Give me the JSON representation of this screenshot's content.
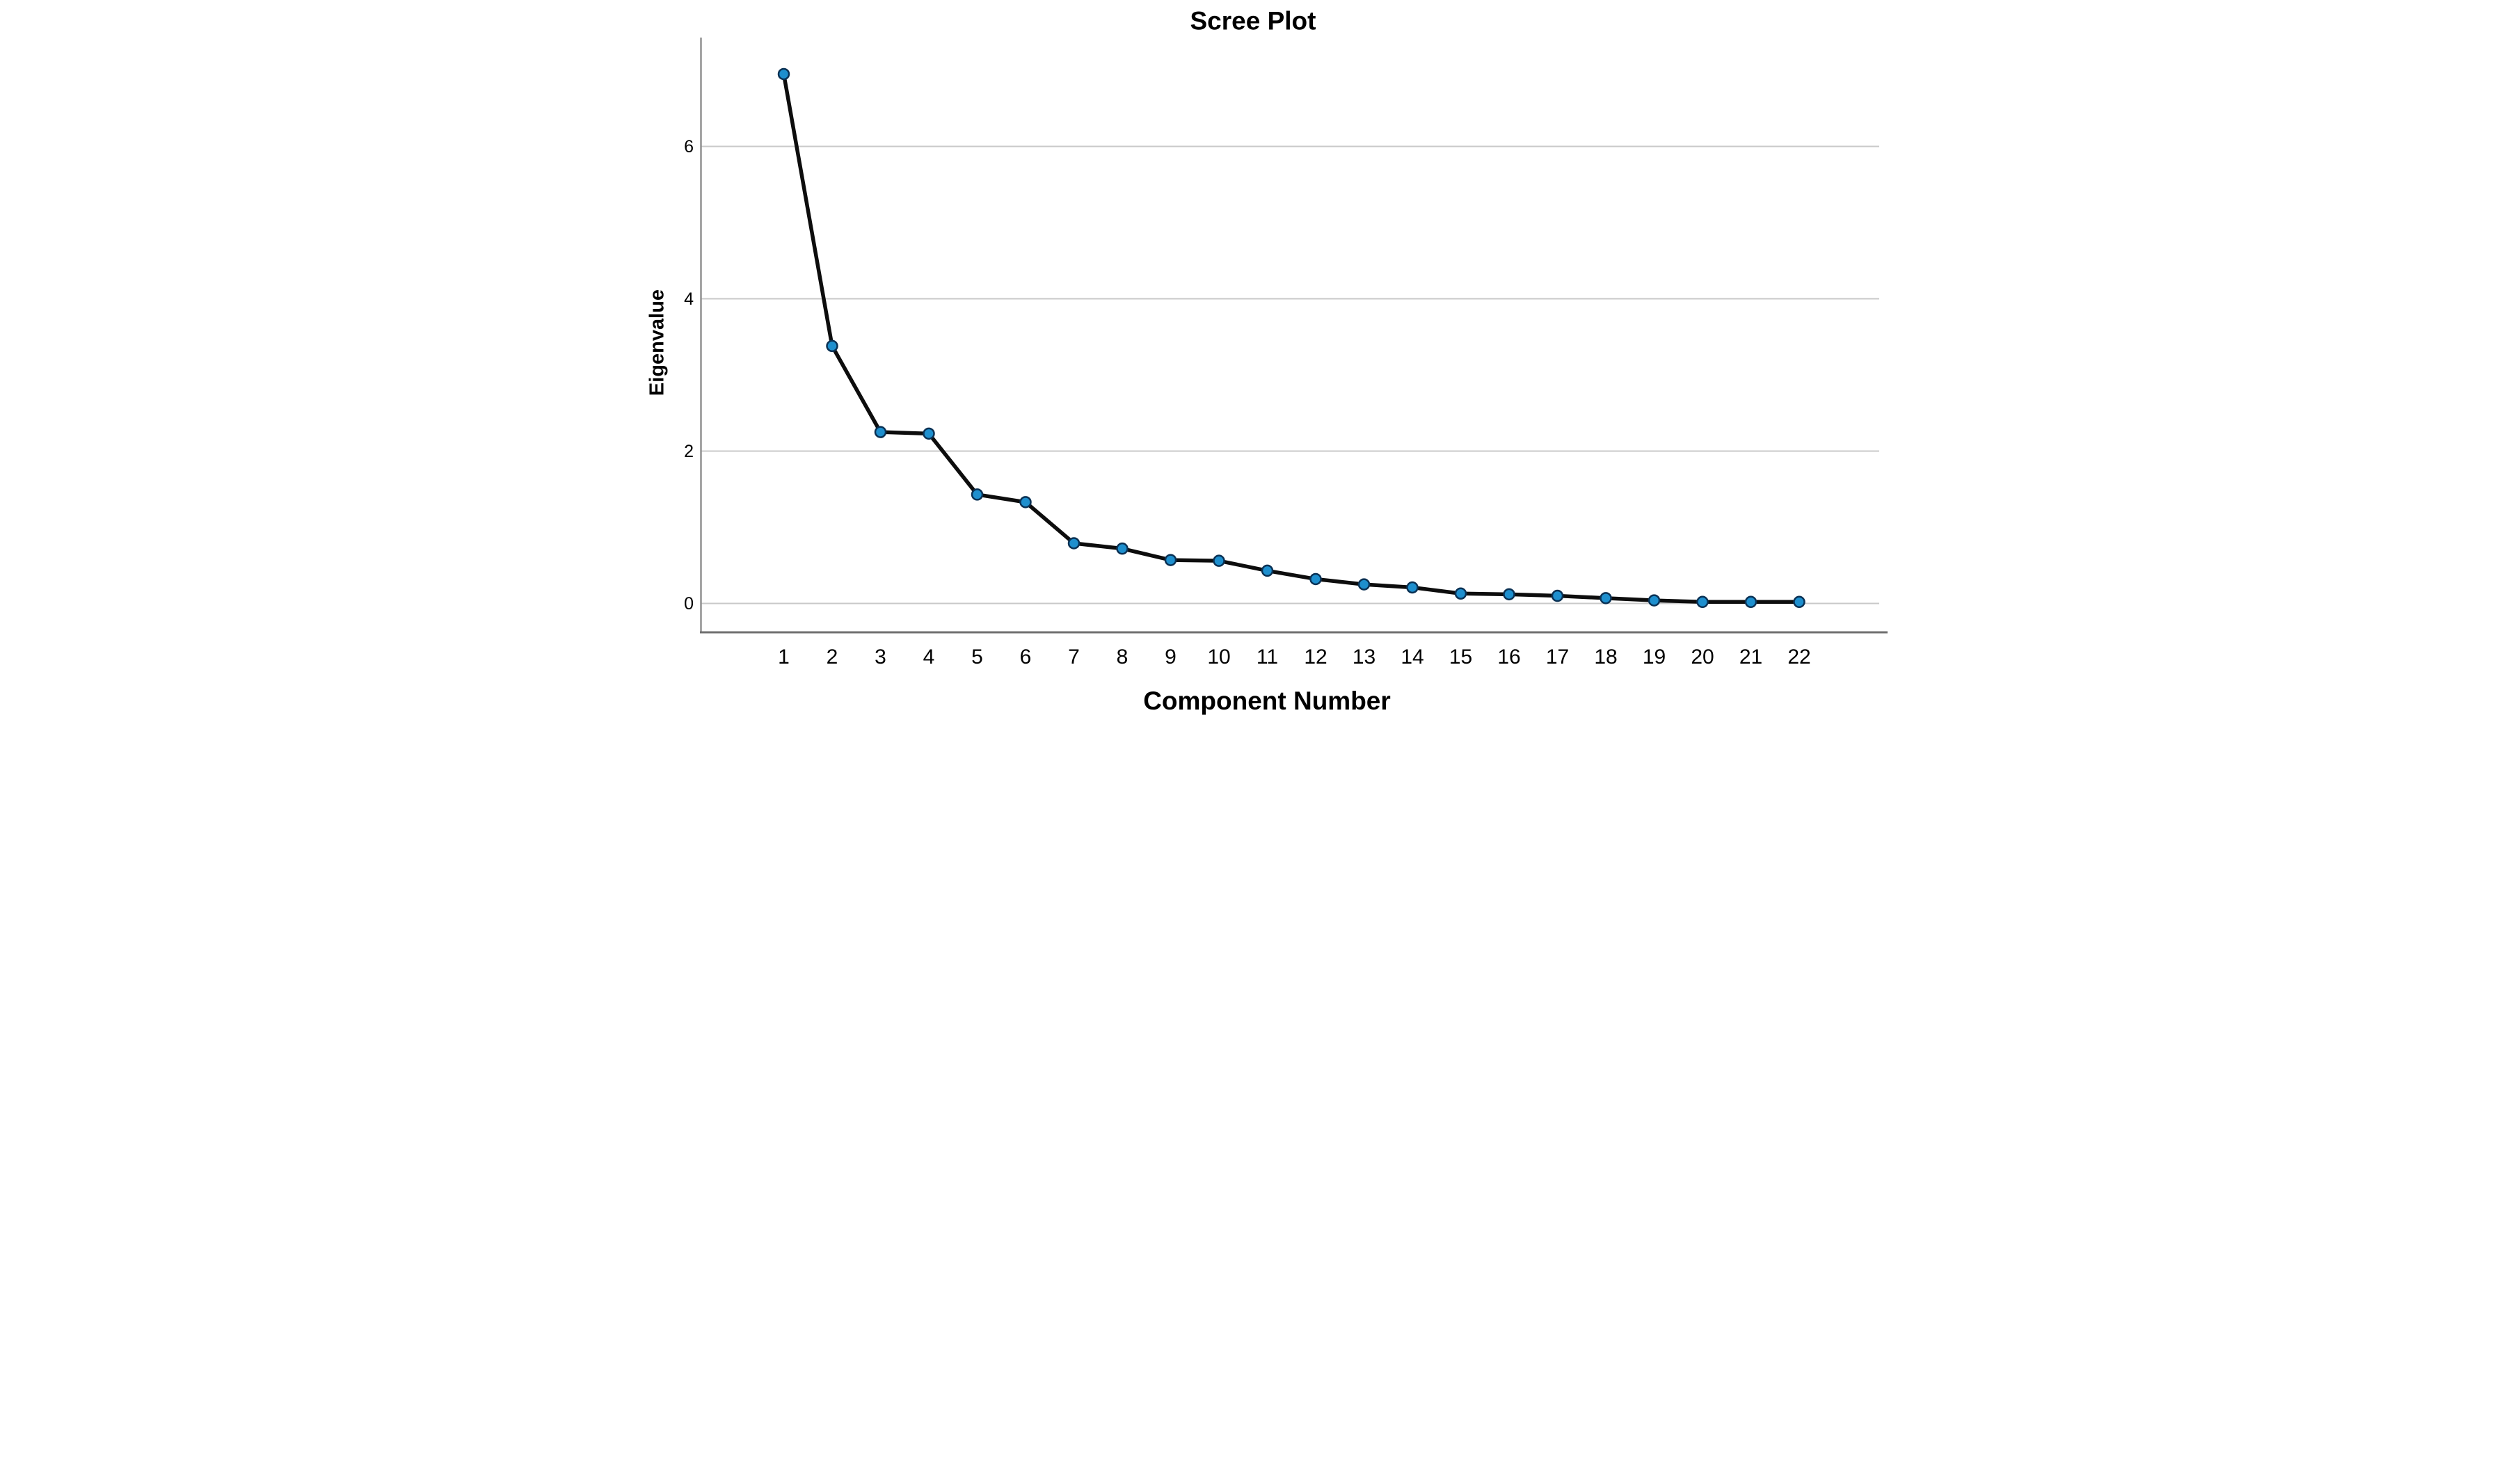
{
  "chart_data": {
    "type": "line",
    "title": "Scree Plot",
    "xlabel": "Component Number",
    "ylabel": "Eigenvalue",
    "categories": [
      "1",
      "2",
      "3",
      "4",
      "5",
      "6",
      "7",
      "8",
      "9",
      "10",
      "11",
      "12",
      "13",
      "14",
      "15",
      "16",
      "17",
      "18",
      "19",
      "20",
      "21",
      "22"
    ],
    "series": [
      {
        "name": "Eigenvalue",
        "values": [
          6.95,
          3.38,
          2.25,
          2.23,
          1.43,
          1.33,
          0.79,
          0.72,
          0.57,
          0.56,
          0.43,
          0.32,
          0.25,
          0.21,
          0.13,
          0.12,
          0.1,
          0.07,
          0.04,
          0.02,
          0.02,
          0.02
        ]
      }
    ],
    "yticks": [
      0,
      2,
      4,
      6
    ],
    "ylim": [
      -0.38,
      7.44
    ],
    "xlim": [
      1,
      22
    ],
    "grid": "horizontal-only",
    "legend": "none",
    "marker": "circle",
    "colors": {
      "line": "#0d0d0d",
      "marker_fill": "#1e8fce",
      "marker_stroke": "#0a3154",
      "gridline": "#c9c9c9",
      "y_axis": "#909090",
      "x_axis_frame": "#6f6f6f",
      "text": "#000000",
      "background": "#ffffff"
    }
  }
}
